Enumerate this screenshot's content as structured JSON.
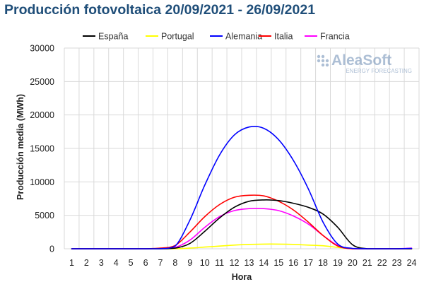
{
  "chart_data": {
    "type": "line",
    "title": "Producción fotovoltaica 20/09/2021 - 26/09/2021",
    "xlabel": "Hora",
    "ylabel": "Producción media (MWh)",
    "x": [
      1,
      2,
      3,
      4,
      5,
      6,
      7,
      8,
      9,
      10,
      11,
      12,
      13,
      14,
      15,
      16,
      17,
      18,
      19,
      20,
      21,
      22,
      23,
      24
    ],
    "ylim": [
      0,
      30000
    ],
    "yticks": [
      0,
      5000,
      10000,
      15000,
      20000,
      25000,
      30000
    ],
    "grid": true,
    "legend_position": "top",
    "series": [
      {
        "name": "España",
        "color": "#000000",
        "values": [
          0,
          0,
          0,
          0,
          0,
          0,
          0,
          100,
          800,
          2600,
          4600,
          6200,
          7100,
          7300,
          7200,
          6800,
          6200,
          5200,
          3200,
          600,
          0,
          0,
          0,
          0
        ]
      },
      {
        "name": "Portugal",
        "color": "#ffff00",
        "values": [
          0,
          0,
          0,
          0,
          0,
          0,
          0,
          0,
          100,
          250,
          400,
          550,
          650,
          700,
          700,
          650,
          550,
          450,
          200,
          0,
          0,
          0,
          0,
          0
        ]
      },
      {
        "name": "Alemania",
        "color": "#0000ff",
        "values": [
          0,
          0,
          0,
          0,
          0,
          0,
          0,
          400,
          4300,
          9500,
          14000,
          17000,
          18200,
          18000,
          16300,
          13200,
          9000,
          4000,
          700,
          50,
          0,
          0,
          0,
          50
        ]
      },
      {
        "name": "Italia",
        "color": "#ff0000",
        "values": [
          0,
          0,
          0,
          0,
          0,
          0,
          100,
          500,
          2500,
          4800,
          6600,
          7700,
          8000,
          7900,
          7100,
          5800,
          4000,
          2000,
          400,
          0,
          0,
          0,
          0,
          0
        ]
      },
      {
        "name": "Francia",
        "color": "#ff00ff",
        "values": [
          0,
          0,
          0,
          0,
          0,
          0,
          50,
          200,
          1300,
          3200,
          4800,
          5700,
          6000,
          6000,
          5700,
          4900,
          3700,
          2000,
          500,
          0,
          0,
          0,
          0,
          100
        ]
      }
    ]
  },
  "watermark": {
    "brand": "AleaSoft",
    "tagline": "ENERGY FORECASTING"
  }
}
